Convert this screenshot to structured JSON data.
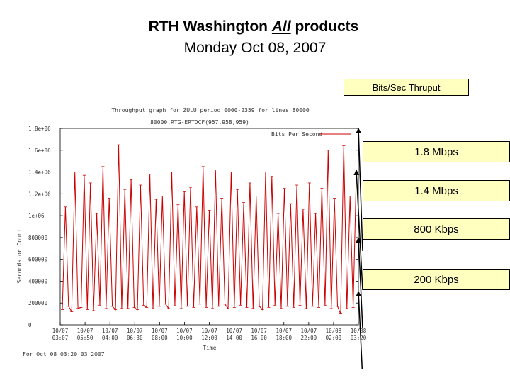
{
  "slide": {
    "title_prefix": "RTH Washington ",
    "title_emph": "All",
    "title_suffix": " products",
    "subtitle": "Monday Oct 08, 2007"
  },
  "callouts": {
    "header": "Bits/Sec Thruput",
    "items": [
      "1.8 Mbps",
      "1.4 Mbps",
      "800 Kbps",
      "200 Kbps"
    ]
  },
  "colors": {
    "series": "#cc0000",
    "callout_bg": "#ffffc0"
  },
  "chart_data": {
    "type": "line",
    "title": "Throughput graph for ZULU period 0000-2359 for lines 80000",
    "subtitle": "80000.RTG-ERTDCF(957,958,959)",
    "xlabel": "Time",
    "ylabel": "Seconds or Count",
    "footer": "For Oct 08 03:20:03 2007",
    "legend": {
      "label": "Bits Per Second",
      "position": "top-right"
    },
    "ylim": [
      0,
      1800000
    ],
    "y_ticks": [
      "0",
      "200000",
      "400000",
      "600000",
      "800000",
      "1e+06",
      "1.2e+06",
      "1.4e+06",
      "1.6e+06",
      "1.8e+06"
    ],
    "x_ticks": [
      [
        "10/07",
        "03:07"
      ],
      [
        "10/07",
        "05:50"
      ],
      [
        "10/07",
        "04:00"
      ],
      [
        "10/07",
        "06:30"
      ],
      [
        "10/07",
        "08:00"
      ],
      [
        "10/07",
        "10:00"
      ],
      [
        "10/07",
        "12:00"
      ],
      [
        "10/07",
        "14:00"
      ],
      [
        "10/07",
        "16:00"
      ],
      [
        "10/07",
        "18:00"
      ],
      [
        "10/07",
        "22:00"
      ],
      [
        "10/08",
        "02:00"
      ],
      [
        "10/08",
        "03:20"
      ]
    ],
    "series": [
      {
        "name": "Bits Per Second",
        "values": [
          140000,
          1080000,
          170000,
          120000,
          1400000,
          150000,
          160000,
          1370000,
          140000,
          1300000,
          130000,
          1020000,
          180000,
          1450000,
          150000,
          1160000,
          170000,
          140000,
          1650000,
          150000,
          1240000,
          150000,
          1330000,
          160000,
          140000,
          1280000,
          180000,
          160000,
          1380000,
          150000,
          1150000,
          170000,
          1180000,
          190000,
          150000,
          1400000,
          180000,
          1100000,
          150000,
          1220000,
          170000,
          1260000,
          160000,
          1080000,
          190000,
          1450000,
          160000,
          1050000,
          150000,
          1420000,
          170000,
          1160000,
          190000,
          150000,
          1400000,
          160000,
          1240000,
          180000,
          1120000,
          160000,
          1300000,
          150000,
          1180000,
          170000,
          140000,
          1400000,
          160000,
          1360000,
          180000,
          1020000,
          150000,
          1250000,
          170000,
          1110000,
          160000,
          1280000,
          180000,
          1060000,
          150000,
          1300000,
          170000,
          1020000,
          160000,
          1250000,
          180000,
          1600000,
          150000,
          1160000,
          170000,
          100000,
          1640000,
          150000,
          1180000,
          160000,
          1380000
        ]
      }
    ]
  }
}
